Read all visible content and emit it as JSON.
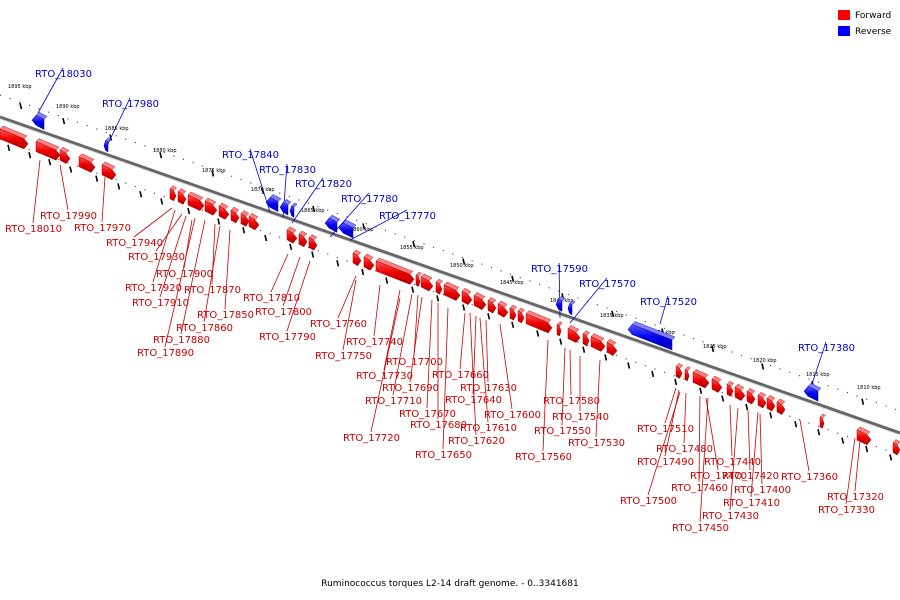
{
  "title": "Ruminococcus torques L2-14 draft genome. - 0..3341681",
  "legend": [
    {
      "label": "Forward",
      "color": "#ff0000"
    },
    {
      "label": "Reverse",
      "color": "#0000ff"
    }
  ],
  "ticks": [
    "1895 kbp",
    "1890 kbp",
    "1885 kbp",
    "1880 kbp",
    "1875 kbp",
    "1870 kbp",
    "1865 kbp",
    "1860 kbp",
    "1855 kbp",
    "1850 kbp",
    "1845 kbp",
    "1840 kbp",
    "1835 kbp",
    "1830 kbp",
    "1825 kbp",
    "1820 kbp",
    "1815 kbp",
    "1810 kbp"
  ],
  "reverse_genes": [
    "RTO_18030",
    "RTO_17980",
    "RTO_17840",
    "RTO_17830",
    "RTO_17820",
    "RTO_17780",
    "RTO_17770",
    "RTO_17590",
    "RTO_17570",
    "RTO_17520",
    "RTO_17380"
  ],
  "forward_genes": [
    "RTO_17990",
    "RTO_18010",
    "RTO_17970",
    "RTO_17940",
    "RTO_17930",
    "RTO_17900",
    "RTO_17920",
    "RTO_17910",
    "RTO_17870",
    "RTO_17850",
    "RTO_17860",
    "RTO_17880",
    "RTO_17890",
    "RTO_17810",
    "RTO_17800",
    "RTO_17790",
    "RTO_17760",
    "RTO_17750",
    "RTO_17740",
    "RTO_17730",
    "RTO_17700",
    "RTO_17690",
    "RTO_17710",
    "RTO_17670",
    "RTO_17680",
    "RTO_17720",
    "RTO_17660",
    "RTO_17640",
    "RTO_17630",
    "RTO_17620",
    "RTO_17610",
    "RTO_17600",
    "RTO_17650",
    "RTO_17580",
    "RTO_17540",
    "RTO_17550",
    "RTO_17530",
    "RTO_17560",
    "RTO_17510",
    "RTO_17480",
    "RTO_17490",
    "RTO_17470",
    "RTO_17440",
    "RTO_17460",
    "RTO_17420",
    "RTO_17400",
    "RTO_17500",
    "RTO_17410",
    "RTO_17430",
    "RTO_17450",
    "RTO_17360",
    "RTO_17320",
    "RTO_17330"
  ]
}
